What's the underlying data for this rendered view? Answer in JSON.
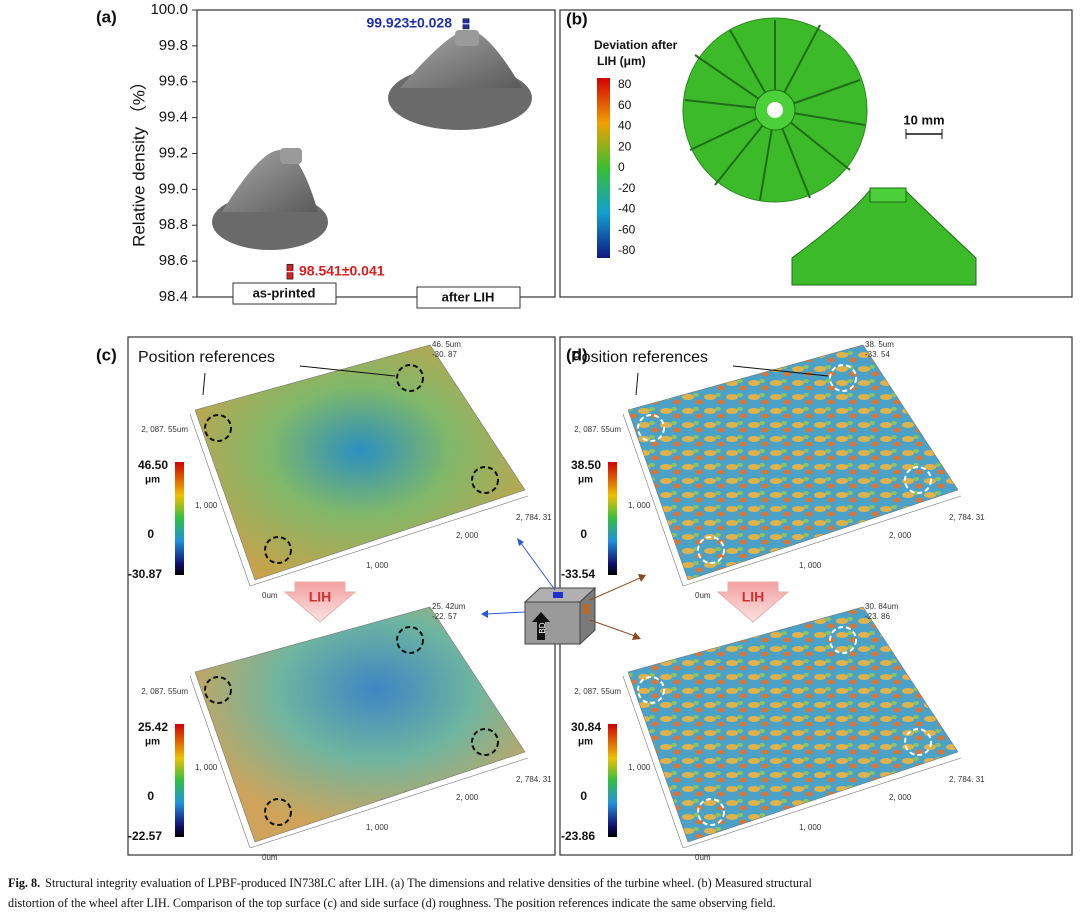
{
  "panel_a": {
    "label": "(a)",
    "chart": {
      "type": "errorbar",
      "y_label": "Relative density （%）",
      "categories": [
        "as-printed",
        "after LIH"
      ],
      "values": [
        98.541,
        99.923
      ],
      "errors": [
        0.041,
        0.028
      ],
      "value_labels": [
        "98.541±0.041",
        "99.923±0.028"
      ],
      "colors": [
        "#d81e1e",
        "#1f2fa8"
      ],
      "ylim": [
        98.4,
        100.0
      ],
      "yticks": [
        98.4,
        98.6,
        98.8,
        {
          "value": 99.0,
          "label": "99.0"
        },
        99.2,
        99.4,
        99.6,
        99.8,
        {
          "value": 100.0,
          "label": "100.0"
        }
      ]
    }
  },
  "panel_b": {
    "label": "(b)",
    "colorbar_title": [
      "Deviation after",
      "LIH (μm)"
    ],
    "colorbar_ticks": [
      80,
      60,
      40,
      20,
      0,
      -20,
      -40,
      -60,
      -80
    ],
    "scale_bar": "10 mm"
  },
  "panel_c": {
    "label": "(c)",
    "annotation": "Position references",
    "process": "LIH",
    "top": {
      "max": "46.50",
      "unit": "μm",
      "zero": "0",
      "min": "-30.87",
      "corner_max": "46. 5um",
      "corner_min": "-30. 87",
      "y_extent": "2, 087. 55um",
      "y_mid": "1, 000",
      "origin": "0um",
      "x_low": "1, 000",
      "x_mid": "2, 000",
      "x_extent": "2, 784. 31"
    },
    "bottom": {
      "max": "25.42",
      "unit": "μm",
      "zero": "0",
      "min": "-22.57",
      "corner_max": "25. 42um",
      "corner_min": "-22. 57",
      "y_extent": "2, 087. 55um",
      "y_mid": "1, 000",
      "origin": "0um",
      "x_low": "1, 000",
      "x_mid": "2, 000",
      "x_extent": "2, 784. 31"
    }
  },
  "panel_d": {
    "label": "(d)",
    "annotation": "Position references",
    "process": "LIH",
    "top": {
      "max": "38.50",
      "unit": "μm",
      "zero": "0",
      "min": "-33.54",
      "corner_max": "38. 5um",
      "corner_min": "-33. 54",
      "y_extent": "2, 087. 55um",
      "y_mid": "1, 000",
      "origin": "0um",
      "x_low": "1, 000",
      "x_mid": "2, 000",
      "x_extent": "2, 784. 31"
    },
    "bottom": {
      "max": "30.84",
      "unit": "μm",
      "zero": "0",
      "min": "-23.86",
      "corner_max": "30. 84um",
      "corner_min": "-23. 86",
      "y_extent": "2, 087. 55um",
      "y_mid": "1, 000",
      "origin": "0um",
      "x_low": "1, 000",
      "x_mid": "2, 000",
      "x_extent": "2, 784. 31"
    }
  },
  "cube_label": "BD",
  "caption": {
    "label": "Fig. 8.",
    "lines": [
      "Structural integrity evaluation of LPBF-produced IN738LC after LIH. (a) The dimensions and relative densities of the turbine wheel. (b) Measured structural",
      "distortion of the wheel after LIH. Comparison of the top surface (c) and side surface (d) roughness. The position references indicate the same observing field."
    ]
  }
}
